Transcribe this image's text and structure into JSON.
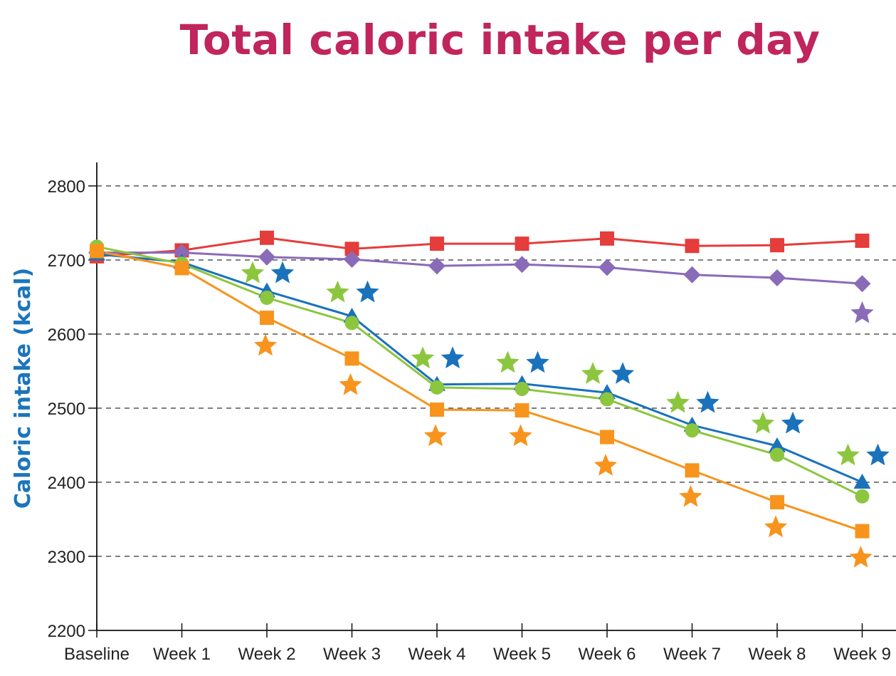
{
  "chart_data": {
    "type": "line",
    "title": "Total caloric intake per day",
    "xlabel": "",
    "ylabel": "Caloric intake (kcal)",
    "categories": [
      "Baseline",
      "Week 1",
      "Week 2",
      "Week 3",
      "Week 4",
      "Week 5",
      "Week 6",
      "Week 7",
      "Week 8",
      "Week 9"
    ],
    "ylim": [
      2200,
      2800
    ],
    "yticks": [
      2200,
      2300,
      2400,
      2500,
      2600,
      2700,
      2800
    ],
    "grid": "horizontal-dashed",
    "legend": "none",
    "series": [
      {
        "color": "#e53c3c",
        "marker": "square",
        "values": [
          2705,
          2713,
          2730,
          2715,
          2722,
          2722,
          2729,
          2719,
          2720,
          2726
        ],
        "star_values": []
      },
      {
        "color": "#8a6bb8",
        "marker": "diamond",
        "values": [
          2710,
          2710,
          2704,
          2701,
          2692,
          2694,
          2690,
          2680,
          2676,
          2668
        ],
        "star_values": [
          null,
          null,
          null,
          null,
          null,
          null,
          null,
          null,
          null,
          2628
        ]
      },
      {
        "color": "#1a72bb",
        "marker": "triangle",
        "values": [
          2708,
          2697,
          2658,
          2624,
          2532,
          2533,
          2521,
          2477,
          2449,
          2400
        ],
        "star_values": [
          null,
          null,
          2682,
          2656,
          2567,
          2561,
          2546,
          2507,
          2479,
          2436
        ]
      },
      {
        "color": "#8cc63f",
        "marker": "circle",
        "values": [
          2718,
          2695,
          2649,
          2615,
          2528,
          2526,
          2512,
          2470,
          2437,
          2381
        ],
        "star_values": [
          null,
          null,
          2682,
          2656,
          2567,
          2561,
          2546,
          2507,
          2479,
          2436
        ]
      },
      {
        "color": "#f7941d",
        "marker": "square",
        "values": [
          2712,
          2689,
          2622,
          2567,
          2498,
          2497,
          2461,
          2416,
          2373,
          2334
        ],
        "star_values": [
          null,
          null,
          2584,
          2531,
          2462,
          2462,
          2422,
          2380,
          2339,
          2298
        ]
      }
    ]
  }
}
